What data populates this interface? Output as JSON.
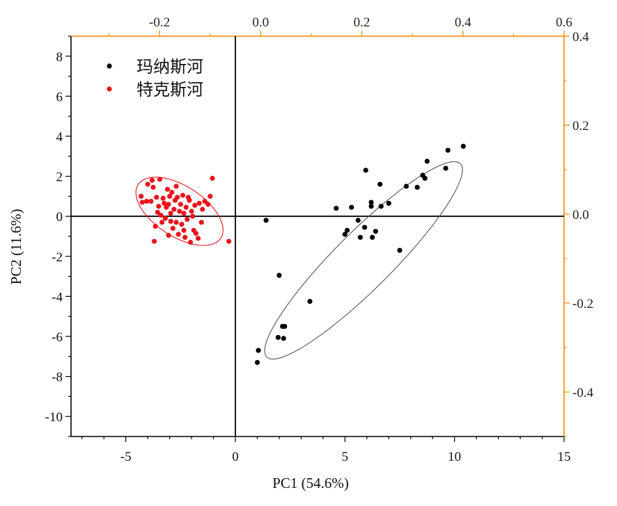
{
  "chart_data": {
    "type": "scatter",
    "xlabel": "PC1 (54.6%)",
    "ylabel": "PC2 (11.6%)",
    "xlim": [
      -7.5,
      15
    ],
    "ylim": [
      -11,
      9
    ],
    "x_ticks": [
      -5,
      0,
      5,
      10,
      15
    ],
    "y_ticks": [
      -10,
      -8,
      -6,
      -4,
      -2,
      0,
      2,
      4,
      6,
      8
    ],
    "x2lim": [
      -0.375,
      0.6
    ],
    "y2lim": [
      -0.5,
      0.4
    ],
    "x2_ticks": [
      "-0.2",
      "0.0",
      "0.2",
      "0.4",
      "0.6"
    ],
    "y2_ticks": [
      "0.4",
      "0.2",
      "0.0",
      "-0.2",
      "-0.4"
    ],
    "x2_tick_values": [
      -0.2,
      0.0,
      0.2,
      0.4,
      0.6
    ],
    "y2_tick_values": [
      0.4,
      0.2,
      0.0,
      -0.2,
      -0.4
    ],
    "secondary_axis_color": "#f0961e",
    "grid": false,
    "legend_position": "top-left",
    "series": [
      {
        "name": "玛纳斯河",
        "color": "#000000",
        "points": [
          [
            1.4,
            -0.2
          ],
          [
            2.0,
            -2.95
          ],
          [
            1.05,
            -6.7
          ],
          [
            1.0,
            -7.3
          ],
          [
            1.95,
            -6.05
          ],
          [
            2.15,
            -5.5
          ],
          [
            2.25,
            -5.5
          ],
          [
            2.2,
            -6.1
          ],
          [
            3.4,
            -4.25
          ],
          [
            4.6,
            0.4
          ],
          [
            5.0,
            -0.9
          ],
          [
            5.1,
            -0.7
          ],
          [
            5.3,
            0.45
          ],
          [
            5.6,
            -0.2
          ],
          [
            5.7,
            -1.05
          ],
          [
            5.9,
            -0.55
          ],
          [
            5.95,
            2.3
          ],
          [
            6.2,
            0.5
          ],
          [
            6.2,
            0.7
          ],
          [
            6.25,
            -1.05
          ],
          [
            6.4,
            -0.75
          ],
          [
            6.65,
            0.5
          ],
          [
            6.6,
            1.6
          ],
          [
            7.0,
            0.65
          ],
          [
            7.5,
            -1.7
          ],
          [
            7.8,
            1.5
          ],
          [
            8.3,
            1.45
          ],
          [
            8.55,
            2.05
          ],
          [
            8.65,
            1.9
          ],
          [
            8.75,
            2.75
          ],
          [
            9.6,
            2.4
          ],
          [
            9.7,
            3.3
          ],
          [
            10.4,
            3.5
          ]
        ],
        "ellipse": {
          "cx": 5.85,
          "cy": -2.2,
          "rx": 12.5,
          "ry": 2.6,
          "angle_deg": 45
        }
      },
      {
        "name": "特克斯河",
        "color": "#e8141c",
        "points": [
          [
            -4.3,
            1.0
          ],
          [
            -4.25,
            0.7
          ],
          [
            -4.05,
            0.75
          ],
          [
            -4.0,
            1.6
          ],
          [
            -3.85,
            0.75
          ],
          [
            -3.8,
            1.8
          ],
          [
            -3.75,
            1.45
          ],
          [
            -3.7,
            -1.25
          ],
          [
            -3.65,
            -0.5
          ],
          [
            -3.6,
            0.95
          ],
          [
            -3.5,
            0.5
          ],
          [
            -3.45,
            1.85
          ],
          [
            -3.4,
            0.05
          ],
          [
            -3.35,
            -0.3
          ],
          [
            -3.3,
            0.9
          ],
          [
            -3.2,
            -0.1
          ],
          [
            -3.15,
            0.45
          ],
          [
            -3.1,
            1.35
          ],
          [
            -3.05,
            0.6
          ],
          [
            -3.0,
            1.0
          ],
          [
            -2.95,
            -0.25
          ],
          [
            -2.9,
            1.2
          ],
          [
            -2.85,
            -0.6
          ],
          [
            -2.8,
            0.35
          ],
          [
            -2.75,
            0.8
          ],
          [
            -2.7,
            1.5
          ],
          [
            -2.6,
            -0.9
          ],
          [
            -2.55,
            0.25
          ],
          [
            -2.5,
            0.6
          ],
          [
            -2.45,
            -0.4
          ],
          [
            -2.4,
            1.05
          ],
          [
            -2.35,
            0.15
          ],
          [
            -2.3,
            -1.05
          ],
          [
            -2.25,
            0.45
          ],
          [
            -2.2,
            -0.15
          ],
          [
            -2.1,
            0.8
          ],
          [
            -2.05,
            -1.3
          ],
          [
            -2.0,
            0.25
          ],
          [
            -1.9,
            -0.7
          ],
          [
            -1.85,
            0.55
          ],
          [
            -1.8,
            -0.85
          ],
          [
            -1.7,
            -1.1
          ],
          [
            -1.65,
            0.65
          ],
          [
            -1.55,
            -0.3
          ],
          [
            -1.5,
            0.35
          ],
          [
            -1.4,
            0.75
          ],
          [
            -1.25,
            0.6
          ],
          [
            -1.15,
            1.0
          ],
          [
            -1.05,
            1.9
          ],
          [
            -0.3,
            -1.25
          ],
          [
            -2.15,
            0.95
          ],
          [
            -3.55,
            0.2
          ],
          [
            -2.7,
            -0.3
          ],
          [
            -2.95,
            0.15
          ],
          [
            -3.25,
            0.65
          ],
          [
            -2.35,
            -0.7
          ],
          [
            -1.95,
            0.0
          ],
          [
            -2.65,
            0.95
          ],
          [
            -3.05,
            -0.95
          ]
        ],
        "ellipse": {
          "cx": -2.55,
          "cy": 0.25,
          "rx": 4.5,
          "ry": 2.3,
          "angle_deg": -33
        }
      }
    ]
  }
}
